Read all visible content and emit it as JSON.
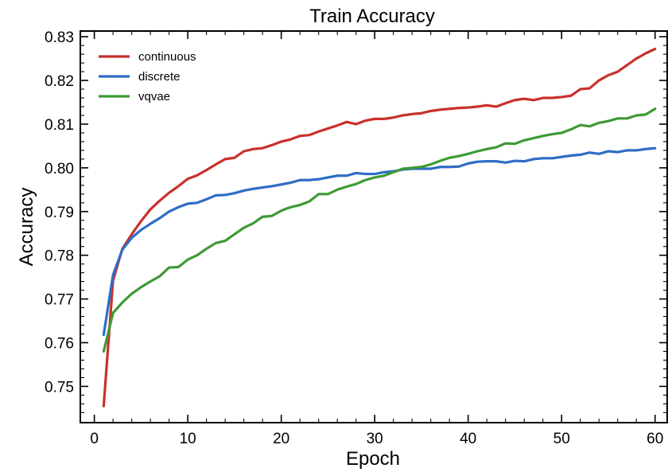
{
  "chart_data": {
    "type": "line",
    "title": "Train Accuracy",
    "xlabel": "Epoch",
    "ylabel": "Accuracy",
    "xlim": [
      -1.5,
      61.3
    ],
    "ylim": [
      0.7417,
      0.8313
    ],
    "xticks": [
      0,
      10,
      20,
      30,
      40,
      50,
      60
    ],
    "xtick_labels": [
      "0",
      "10",
      "20",
      "30",
      "40",
      "50",
      "60"
    ],
    "yticks": [
      0.75,
      0.76,
      0.77,
      0.78,
      0.79,
      0.8,
      0.81,
      0.82,
      0.83
    ],
    "ytick_labels": [
      "0.75",
      "0.76",
      "0.77",
      "0.78",
      "0.79",
      "0.80",
      "0.81",
      "0.82",
      "0.83"
    ],
    "ticks_direction": "in",
    "grid": false,
    "legend_position": "top-left",
    "x": [
      1,
      2,
      3,
      4,
      5,
      6,
      7,
      8,
      9,
      10,
      11,
      12,
      13,
      14,
      15,
      16,
      17,
      18,
      19,
      20,
      21,
      22,
      23,
      24,
      25,
      26,
      27,
      28,
      29,
      30,
      31,
      32,
      33,
      34,
      35,
      36,
      37,
      38,
      39,
      40,
      41,
      42,
      43,
      44,
      45,
      46,
      47,
      48,
      49,
      50,
      51,
      52,
      53,
      54,
      55,
      56,
      57,
      58,
      59,
      60
    ],
    "series": [
      {
        "name": "continuous",
        "color": "#c8312c",
        "values": [
          0.7455,
          0.7742,
          0.7815,
          0.7848,
          0.7878,
          0.7905,
          0.7925,
          0.7943,
          0.7958,
          0.7975,
          0.7983,
          0.7995,
          0.8008,
          0.802,
          0.8023,
          0.8038,
          0.8043,
          0.8045,
          0.8052,
          0.806,
          0.8065,
          0.8073,
          0.8075,
          0.8083,
          0.809,
          0.8097,
          0.8105,
          0.81,
          0.8108,
          0.8112,
          0.8112,
          0.8115,
          0.812,
          0.8123,
          0.8125,
          0.813,
          0.8133,
          0.8135,
          0.8137,
          0.8138,
          0.814,
          0.8143,
          0.814,
          0.8148,
          0.8155,
          0.8158,
          0.8155,
          0.816,
          0.816,
          0.8162,
          0.8165,
          0.818,
          0.8182,
          0.82,
          0.8212,
          0.822,
          0.8235,
          0.825,
          0.8262,
          0.8272
        ]
      },
      {
        "name": "discrete",
        "color": "#2e6dc5",
        "values": [
          0.7618,
          0.7755,
          0.7813,
          0.784,
          0.7858,
          0.7872,
          0.7885,
          0.79,
          0.791,
          0.7918,
          0.792,
          0.7928,
          0.7937,
          0.7938,
          0.7942,
          0.7948,
          0.7952,
          0.7955,
          0.7958,
          0.7962,
          0.7966,
          0.7972,
          0.7972,
          0.7974,
          0.7978,
          0.7982,
          0.7982,
          0.7988,
          0.7986,
          0.7986,
          0.799,
          0.7992,
          0.7996,
          0.7998,
          0.7998,
          0.7998,
          0.8002,
          0.8002,
          0.8003,
          0.801,
          0.8014,
          0.8015,
          0.8015,
          0.8012,
          0.8016,
          0.8015,
          0.802,
          0.8022,
          0.8022,
          0.8025,
          0.8028,
          0.803,
          0.8035,
          0.8032,
          0.8038,
          0.8036,
          0.804,
          0.804,
          0.8043,
          0.8045
        ]
      },
      {
        "name": "vqvae",
        "color": "#3f9a35",
        "values": [
          0.758,
          0.7668,
          0.7692,
          0.7712,
          0.7727,
          0.774,
          0.7752,
          0.7772,
          0.7773,
          0.779,
          0.78,
          0.7815,
          0.7828,
          0.7833,
          0.7848,
          0.7863,
          0.7873,
          0.7888,
          0.789,
          0.7902,
          0.791,
          0.7915,
          0.7923,
          0.794,
          0.794,
          0.795,
          0.7957,
          0.7963,
          0.7972,
          0.7978,
          0.7982,
          0.799,
          0.7998,
          0.8,
          0.8002,
          0.8008,
          0.8016,
          0.8023,
          0.8027,
          0.8032,
          0.8038,
          0.8043,
          0.8047,
          0.8056,
          0.8055,
          0.8063,
          0.8068,
          0.8073,
          0.8077,
          0.808,
          0.8088,
          0.8098,
          0.8095,
          0.8103,
          0.8107,
          0.8113,
          0.8113,
          0.812,
          0.8122,
          0.8135
        ]
      }
    ]
  }
}
